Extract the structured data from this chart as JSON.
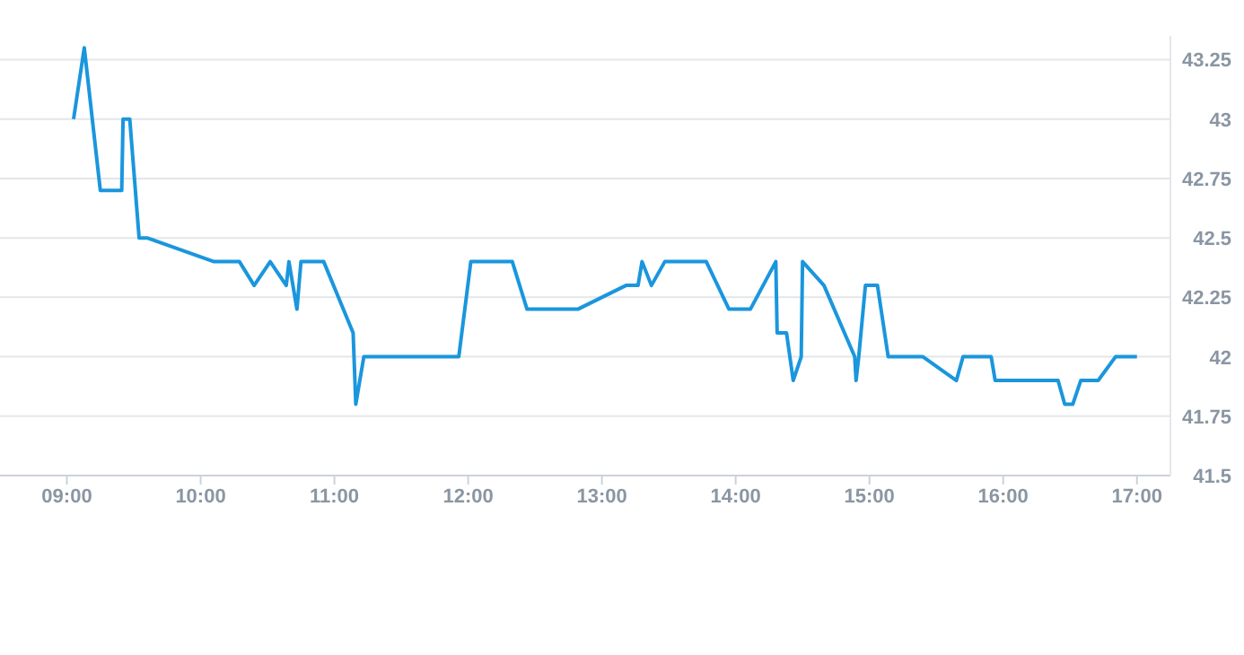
{
  "chart_data": {
    "type": "line",
    "x": [
      9.05,
      9.13,
      9.25,
      9.41,
      9.42,
      9.47,
      9.54,
      9.6,
      10.1,
      10.29,
      10.4,
      10.52,
      10.64,
      10.66,
      10.72,
      10.75,
      10.92,
      11.14,
      11.16,
      11.22,
      11.93,
      12.02,
      12.33,
      12.44,
      12.82,
      13.18,
      13.27,
      13.3,
      13.37,
      13.47,
      13.78,
      13.95,
      14.11,
      14.3,
      14.31,
      14.38,
      14.43,
      14.49,
      14.5,
      14.66,
      14.89,
      14.9,
      14.92,
      14.97,
      15.06,
      15.14,
      15.4,
      15.65,
      15.7,
      15.91,
      15.94,
      16.41,
      16.46,
      16.52,
      16.58,
      16.71,
      16.84,
      17.0
    ],
    "series": [
      {
        "color": "#1a96dd",
        "values": [
          43.0,
          43.3,
          42.7,
          42.7,
          43.0,
          43.0,
          42.5,
          42.5,
          42.4,
          42.4,
          42.3,
          42.4,
          42.3,
          42.4,
          42.2,
          42.4,
          42.4,
          42.1,
          41.8,
          42.0,
          42.0,
          42.4,
          42.4,
          42.2,
          42.2,
          42.3,
          42.3,
          42.4,
          42.3,
          42.4,
          42.4,
          42.2,
          42.2,
          42.4,
          42.1,
          42.1,
          41.9,
          42.0,
          42.4,
          42.3,
          42.0,
          41.9,
          42.0,
          42.3,
          42.3,
          42.0,
          42.0,
          41.9,
          42.0,
          42.0,
          41.9,
          41.9,
          41.8,
          41.8,
          41.9,
          41.9,
          42.0,
          42.0
        ]
      }
    ],
    "xlim": [
      8.5,
      17.25
    ],
    "xticks": [
      {
        "value": 9,
        "label": "09:00"
      },
      {
        "value": 10,
        "label": "10:00"
      },
      {
        "value": 11,
        "label": "11:00"
      },
      {
        "value": 12,
        "label": "12:00"
      },
      {
        "value": 13,
        "label": "13:00"
      },
      {
        "value": 14,
        "label": "14:00"
      },
      {
        "value": 15,
        "label": "15:00"
      },
      {
        "value": 16,
        "label": "16:00"
      },
      {
        "value": 17,
        "label": "17:00"
      }
    ],
    "ylim": [
      41.5,
      43.35
    ],
    "yticks": [
      41.5,
      41.75,
      42,
      42.25,
      42.5,
      42.75,
      43,
      43.25
    ],
    "grid": "y",
    "legend": false,
    "marker": "none",
    "line_style": "solid"
  }
}
